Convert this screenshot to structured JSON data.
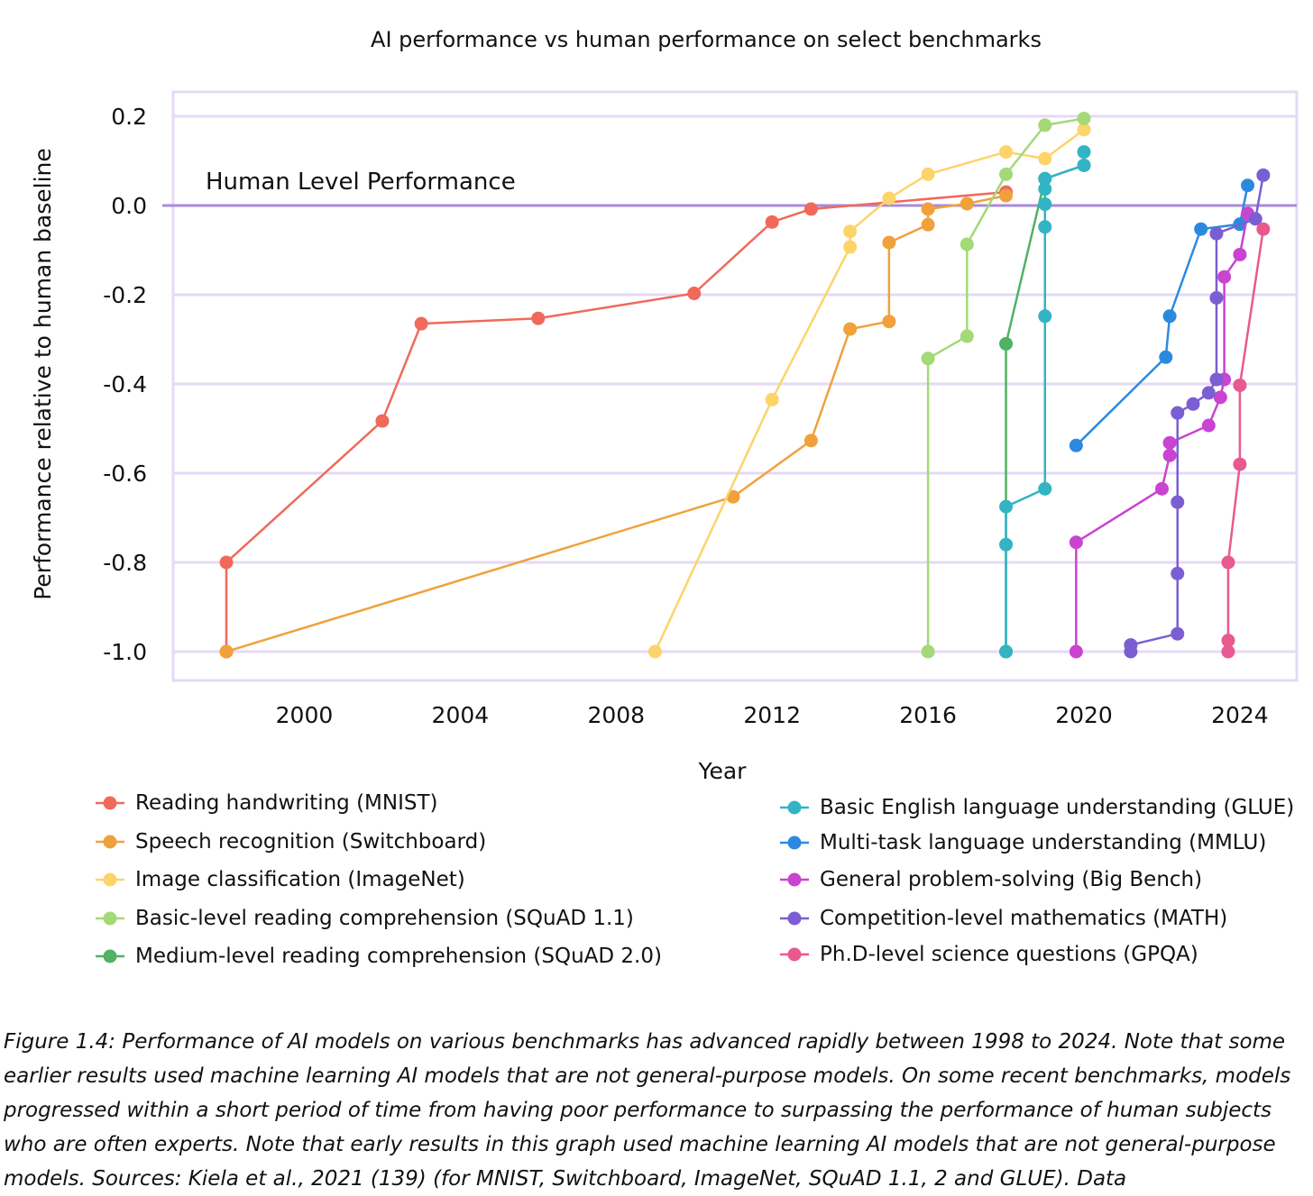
{
  "chart_data": {
    "type": "line",
    "title": "AI performance vs human performance on select benchmarks",
    "xlabel": "Year",
    "ylabel": "Performance relative to human baseline",
    "xlim": [
      1996.3,
      2025.0
    ],
    "ylim": [
      -1.07,
      0.25
    ],
    "xticks": [
      2000,
      2004,
      2008,
      2012,
      2016,
      2020,
      2024
    ],
    "yticks": [
      0.2,
      0.0,
      -0.2,
      -0.4,
      -0.6,
      -0.8,
      -1.0
    ],
    "ytick_labels": [
      "0.2",
      "0.0",
      "-0.2",
      "-0.4",
      "-0.6",
      "-0.8",
      "-1.0"
    ],
    "grid": true,
    "baseline": {
      "y": 0.0,
      "label": "Human Level Performance",
      "color": "#a78bdb"
    },
    "series": [
      {
        "name": "Reading handwriting (MNIST)",
        "color": "#f0695a",
        "x": [
          1998,
          1998,
          2002,
          2003,
          2006,
          2010,
          2012,
          2013,
          2018
        ],
        "y": [
          -1.0,
          -0.8,
          -0.483,
          -0.265,
          -0.253,
          -0.197,
          -0.037,
          -0.008,
          0.03
        ]
      },
      {
        "name": "Speech recognition (Switchboard)",
        "color": "#f0a13c",
        "x": [
          1998,
          2011,
          2013,
          2014,
          2015,
          2015,
          2016,
          2016,
          2017,
          2018
        ],
        "y": [
          -1.0,
          -0.653,
          -0.527,
          -0.277,
          -0.26,
          -0.083,
          -0.043,
          -0.008,
          0.004,
          0.022
        ]
      },
      {
        "name": "Image classification (ImageNet)",
        "color": "#fcd46a",
        "x": [
          2009,
          2012,
          2014,
          2014,
          2015,
          2016,
          2018,
          2019,
          2020
        ],
        "y": [
          -1.0,
          -0.435,
          -0.093,
          -0.058,
          0.016,
          0.07,
          0.12,
          0.105,
          0.17
        ]
      },
      {
        "name": "Basic-level reading comprehension (SQuAD 1.1)",
        "color": "#a3d977",
        "x": [
          2016,
          2016,
          2017,
          2017,
          2018,
          2019,
          2020
        ],
        "y": [
          -1.0,
          -0.343,
          -0.293,
          -0.087,
          0.07,
          0.18,
          0.195
        ]
      },
      {
        "name": "Medium-level reading comprehension (SQuAD 2.0)",
        "color": "#4fb264",
        "x": [
          2018,
          2018,
          2019,
          2020
        ],
        "y": [
          -1.0,
          -0.31,
          0.06,
          0.09
        ]
      },
      {
        "name": "Basic English language understanding (GLUE)",
        "color": "#33b4c4",
        "x": [
          2018,
          2018,
          2018,
          2019,
          2019,
          2019,
          2019,
          2019,
          2019,
          2020,
          2020
        ],
        "y": [
          -1.0,
          -0.76,
          -0.675,
          -0.635,
          -0.248,
          -0.048,
          0.003,
          0.037,
          0.06,
          0.09,
          0.12
        ]
      },
      {
        "name": "Multi-task language understanding (MMLU)",
        "color": "#2b8ae0",
        "x": [
          2019.8,
          2022.1,
          2022.2,
          2023.0,
          2024.0,
          2024.2
        ],
        "y": [
          -0.538,
          -0.34,
          -0.248,
          -0.053,
          -0.042,
          0.045
        ]
      },
      {
        "name": "General problem-solving (Big Bench)",
        "color": "#c944d0",
        "x": [
          2019.8,
          2019.8,
          2022.0,
          2022.2,
          2022.2,
          2023.2,
          2023.5,
          2023.6,
          2023.6,
          2024.0,
          2024.2
        ],
        "y": [
          -1.0,
          -0.755,
          -0.635,
          -0.56,
          -0.532,
          -0.493,
          -0.43,
          -0.39,
          -0.16,
          -0.11,
          -0.018
        ]
      },
      {
        "name": "Competition-level mathematics (MATH)",
        "color": "#7b5ed3",
        "x": [
          2021.2,
          2021.2,
          2022.4,
          2022.4,
          2022.4,
          2022.4,
          2022.8,
          2023.2,
          2023.4,
          2023.4,
          2023.4,
          2024.4,
          2024.6
        ],
        "y": [
          -1.0,
          -0.985,
          -0.96,
          -0.825,
          -0.665,
          -0.465,
          -0.445,
          -0.42,
          -0.39,
          -0.207,
          -0.063,
          -0.03,
          0.068
        ]
      },
      {
        "name": "Ph.D-level science questions (GPQA)",
        "color": "#e8598f",
        "x": [
          2023.7,
          2023.7,
          2023.7,
          2024.0,
          2024.0,
          2024.6
        ],
        "y": [
          -1.0,
          -0.975,
          -0.8,
          -0.58,
          -0.403,
          -0.053
        ]
      }
    ]
  },
  "caption": {
    "lead": "Figure 1.4:",
    "text": " Performance of AI models on various benchmarks has advanced rapidly between 1998 to 2024. Note that some earlier results used machine learning AI models that are not general-purpose models. On some recent benchmarks, models progressed within a short period of time from having poor performance to surpassing the performance of human subjects who are often experts. Note that early results in this graph used machine learning AI models that are not general-purpose models. Sources: Kiela et al., 2021 (139) (for MNIST, Switchboard, ImageNet, SQuAD 1.1, 2 and GLUE). Data"
  }
}
